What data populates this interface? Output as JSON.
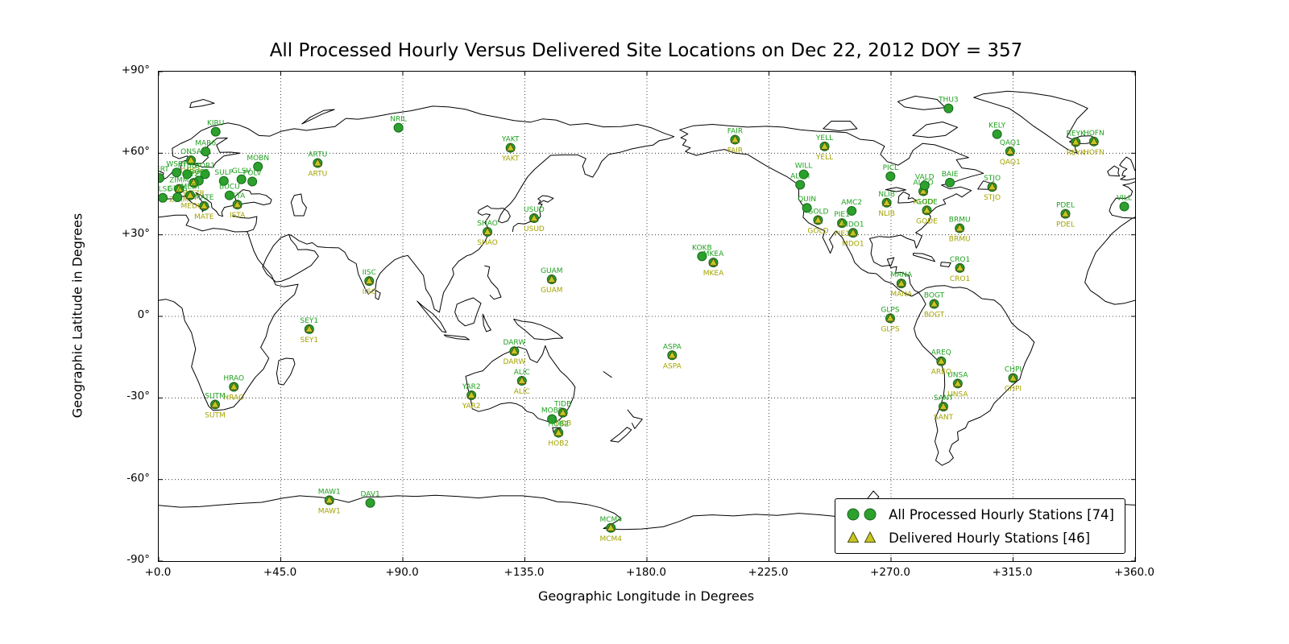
{
  "chart_data": {
    "type": "scatter",
    "title": "All Processed Hourly Versus Delivered Site Locations on Dec 22, 2012 DOY = 357",
    "xlabel": "Geographic Longitude in Degrees",
    "ylabel": "Geographic Latitude in Degrees",
    "xlim": [
      0,
      360
    ],
    "ylim": [
      -90,
      90
    ],
    "grid": "dotted",
    "x_ticks": {
      "values": [
        0,
        45,
        90,
        135,
        180,
        225,
        270,
        315,
        360
      ],
      "labels": [
        "+0.0",
        "+45.0",
        "+90.0",
        "+135.0",
        "+180.0",
        "+225.0",
        "+270.0",
        "+315.0",
        "+360.0"
      ]
    },
    "y_ticks": {
      "values": [
        90,
        60,
        30,
        0,
        -30,
        -60,
        -90
      ],
      "labels": [
        "+90°",
        "+60°",
        "+30°",
        "0°",
        "-30°",
        "-60°",
        "-90°"
      ]
    },
    "legend": {
      "position": "lower right",
      "items": [
        {
          "label": "All Processed Hourly Stations [74]",
          "marker": "circle",
          "count": 74
        },
        {
          "label": "Delivered Hourly Stations [46]",
          "marker": "triangle",
          "count": 46
        }
      ]
    },
    "stations": [
      {
        "name": "KIRU",
        "lon": 21.0,
        "lat": 67.9,
        "delivered": false
      },
      {
        "name": "MAR6",
        "lon": 17.3,
        "lat": 60.6,
        "delivered": false
      },
      {
        "name": "ONSA",
        "lon": 11.9,
        "lat": 57.4,
        "delivered": true
      },
      {
        "name": "MOBN",
        "lon": 36.6,
        "lat": 55.1,
        "delivered": false
      },
      {
        "name": "SULP",
        "lon": 24.0,
        "lat": 49.8,
        "delivered": false
      },
      {
        "name": "HERT",
        "lon": 0.3,
        "lat": 50.9,
        "delivered": false
      },
      {
        "name": "WSRT",
        "lon": 6.6,
        "lat": 52.9,
        "delivered": false
      },
      {
        "name": "PTBB",
        "lon": 10.5,
        "lat": 52.3,
        "delivered": false
      },
      {
        "name": "BOR1",
        "lon": 17.1,
        "lat": 52.3,
        "delivered": false
      },
      {
        "name": "GOPE",
        "lon": 14.8,
        "lat": 49.9,
        "delivered": false
      },
      {
        "name": "WTZR",
        "lon": 12.9,
        "lat": 49.1,
        "delivered": true
      },
      {
        "name": "ZIMM",
        "lon": 7.5,
        "lat": 46.9,
        "delivered": true
      },
      {
        "name": "TLSE",
        "lon": 1.5,
        "lat": 43.6,
        "delivered": false
      },
      {
        "name": "GRAS",
        "lon": 6.9,
        "lat": 43.8,
        "delivered": false
      },
      {
        "name": "MEDI",
        "lon": 11.6,
        "lat": 44.5,
        "delivered": true
      },
      {
        "name": "BUCU",
        "lon": 26.1,
        "lat": 44.5,
        "delivered": false
      },
      {
        "name": "GLSV",
        "lon": 30.5,
        "lat": 50.4,
        "delivered": false
      },
      {
        "name": "POLV",
        "lon": 34.5,
        "lat": 49.6,
        "delivered": false
      },
      {
        "name": "ISTA",
        "lon": 29.0,
        "lat": 41.1,
        "delivered": true
      },
      {
        "name": "MATE",
        "lon": 16.7,
        "lat": 40.6,
        "delivered": true
      },
      {
        "name": "ARTU",
        "lon": 58.6,
        "lat": 56.4,
        "delivered": true
      },
      {
        "name": "NRIL",
        "lon": 88.4,
        "lat": 69.4,
        "delivered": false
      },
      {
        "name": "YAKT",
        "lon": 129.7,
        "lat": 62.0,
        "delivered": true
      },
      {
        "name": "SHAO",
        "lon": 121.2,
        "lat": 31.1,
        "delivered": true
      },
      {
        "name": "USUD",
        "lon": 138.4,
        "lat": 36.1,
        "delivered": true
      },
      {
        "name": "IISC",
        "lon": 77.6,
        "lat": 13.0,
        "delivered": true
      },
      {
        "name": "GUAM",
        "lon": 144.9,
        "lat": 13.6,
        "delivered": true
      },
      {
        "name": "KOKB",
        "lon": 200.3,
        "lat": 22.1,
        "delivered": false
      },
      {
        "name": "MKEA",
        "lon": 204.5,
        "lat": 19.8,
        "delivered": true
      },
      {
        "name": "ASPA",
        "lon": 189.3,
        "lat": -14.3,
        "delivered": true
      },
      {
        "name": "FAIR",
        "lon": 212.5,
        "lat": 65.0,
        "delivered": true
      },
      {
        "name": "YELL",
        "lon": 245.5,
        "lat": 62.5,
        "delivered": true
      },
      {
        "name": "WILL",
        "lon": 237.8,
        "lat": 52.2,
        "delivered": false
      },
      {
        "name": "ALBH",
        "lon": 236.5,
        "lat": 48.4,
        "delivered": false
      },
      {
        "name": "QUIN",
        "lon": 239.0,
        "lat": 39.9,
        "delivered": false
      },
      {
        "name": "GOLD",
        "lon": 243.1,
        "lat": 35.4,
        "delivered": true
      },
      {
        "name": "AMC2",
        "lon": 255.5,
        "lat": 38.8,
        "delivered": false
      },
      {
        "name": "PIE1",
        "lon": 251.9,
        "lat": 34.3,
        "delivered": true
      },
      {
        "name": "MDO1",
        "lon": 256.0,
        "lat": 30.7,
        "delivered": true
      },
      {
        "name": "NLIB",
        "lon": 268.4,
        "lat": 41.8,
        "delivered": true
      },
      {
        "name": "PICL",
        "lon": 269.8,
        "lat": 51.5,
        "delivered": false
      },
      {
        "name": "ALGO",
        "lon": 281.9,
        "lat": 46.0,
        "delivered": true
      },
      {
        "name": "VALD",
        "lon": 282.4,
        "lat": 48.1,
        "delivered": false
      },
      {
        "name": "GODE",
        "lon": 283.2,
        "lat": 39.0,
        "delivered": true
      },
      {
        "name": "BAIE",
        "lon": 291.7,
        "lat": 49.2,
        "delivered": false
      },
      {
        "name": "STJO",
        "lon": 307.3,
        "lat": 47.6,
        "delivered": true
      },
      {
        "name": "BRMU",
        "lon": 295.3,
        "lat": 32.4,
        "delivered": true
      },
      {
        "name": "THU3",
        "lon": 291.2,
        "lat": 76.5,
        "delivered": false
      },
      {
        "name": "KELY",
        "lon": 309.1,
        "lat": 67.0,
        "delivered": false
      },
      {
        "name": "QAQ1",
        "lon": 313.9,
        "lat": 60.7,
        "delivered": true
      },
      {
        "name": "MANA",
        "lon": 273.8,
        "lat": 12.1,
        "delivered": true
      },
      {
        "name": "CRO1",
        "lon": 295.4,
        "lat": 17.8,
        "delivered": true
      },
      {
        "name": "BOGT",
        "lon": 285.9,
        "lat": 4.6,
        "delivered": true
      },
      {
        "name": "GLPS",
        "lon": 269.7,
        "lat": -0.7,
        "delivered": true
      },
      {
        "name": "AREQ",
        "lon": 288.5,
        "lat": -16.5,
        "delivered": true
      },
      {
        "name": "UNSA",
        "lon": 294.6,
        "lat": -24.7,
        "delivered": true
      },
      {
        "name": "SANT",
        "lon": 289.3,
        "lat": -33.2,
        "delivered": true
      },
      {
        "name": "CHPI",
        "lon": 315.0,
        "lat": -22.7,
        "delivered": true
      },
      {
        "name": "SEY1",
        "lon": 55.5,
        "lat": -4.7,
        "delivered": true
      },
      {
        "name": "HRAO",
        "lon": 27.7,
        "lat": -25.9,
        "delivered": true
      },
      {
        "name": "SUTM",
        "lon": 20.8,
        "lat": -32.4,
        "delivered": true
      },
      {
        "name": "PDEL",
        "lon": 334.3,
        "lat": 37.7,
        "delivered": true
      },
      {
        "name": "REYK",
        "lon": 338.1,
        "lat": 64.1,
        "delivered": true
      },
      {
        "name": "HOFN",
        "lon": 344.8,
        "lat": 64.3,
        "delivered": true
      },
      {
        "name": "VILL",
        "lon": 356.0,
        "lat": 40.4,
        "delivered": false
      },
      {
        "name": "DARW",
        "lon": 131.1,
        "lat": -12.8,
        "delivered": true
      },
      {
        "name": "ALIC",
        "lon": 133.9,
        "lat": -23.7,
        "delivered": true
      },
      {
        "name": "YAR2",
        "lon": 115.3,
        "lat": -29.0,
        "delivered": true
      },
      {
        "name": "TIDB",
        "lon": 149.0,
        "lat": -35.4,
        "delivered": true
      },
      {
        "name": "MOBS",
        "lon": 145.0,
        "lat": -37.8,
        "delivered": false
      },
      {
        "name": "HOB2",
        "lon": 147.4,
        "lat": -42.8,
        "delivered": true
      },
      {
        "name": "MAW1",
        "lon": 62.9,
        "lat": -67.6,
        "delivered": true
      },
      {
        "name": "DAV1",
        "lon": 78.0,
        "lat": -68.6,
        "delivered": false
      },
      {
        "name": "MCM4",
        "lon": 166.7,
        "lat": -77.8,
        "delivered": true
      }
    ]
  },
  "colors": {
    "processed_fill": "#2da02d",
    "processed_edge": "#15691a",
    "processed_label": "#21a121",
    "delivered_fill": "#c6c621",
    "delivered_edge": "#4c4c10",
    "delivered_label": "#a3a300",
    "coastline": "#000000",
    "grid": "#000000",
    "text": "#000000"
  }
}
